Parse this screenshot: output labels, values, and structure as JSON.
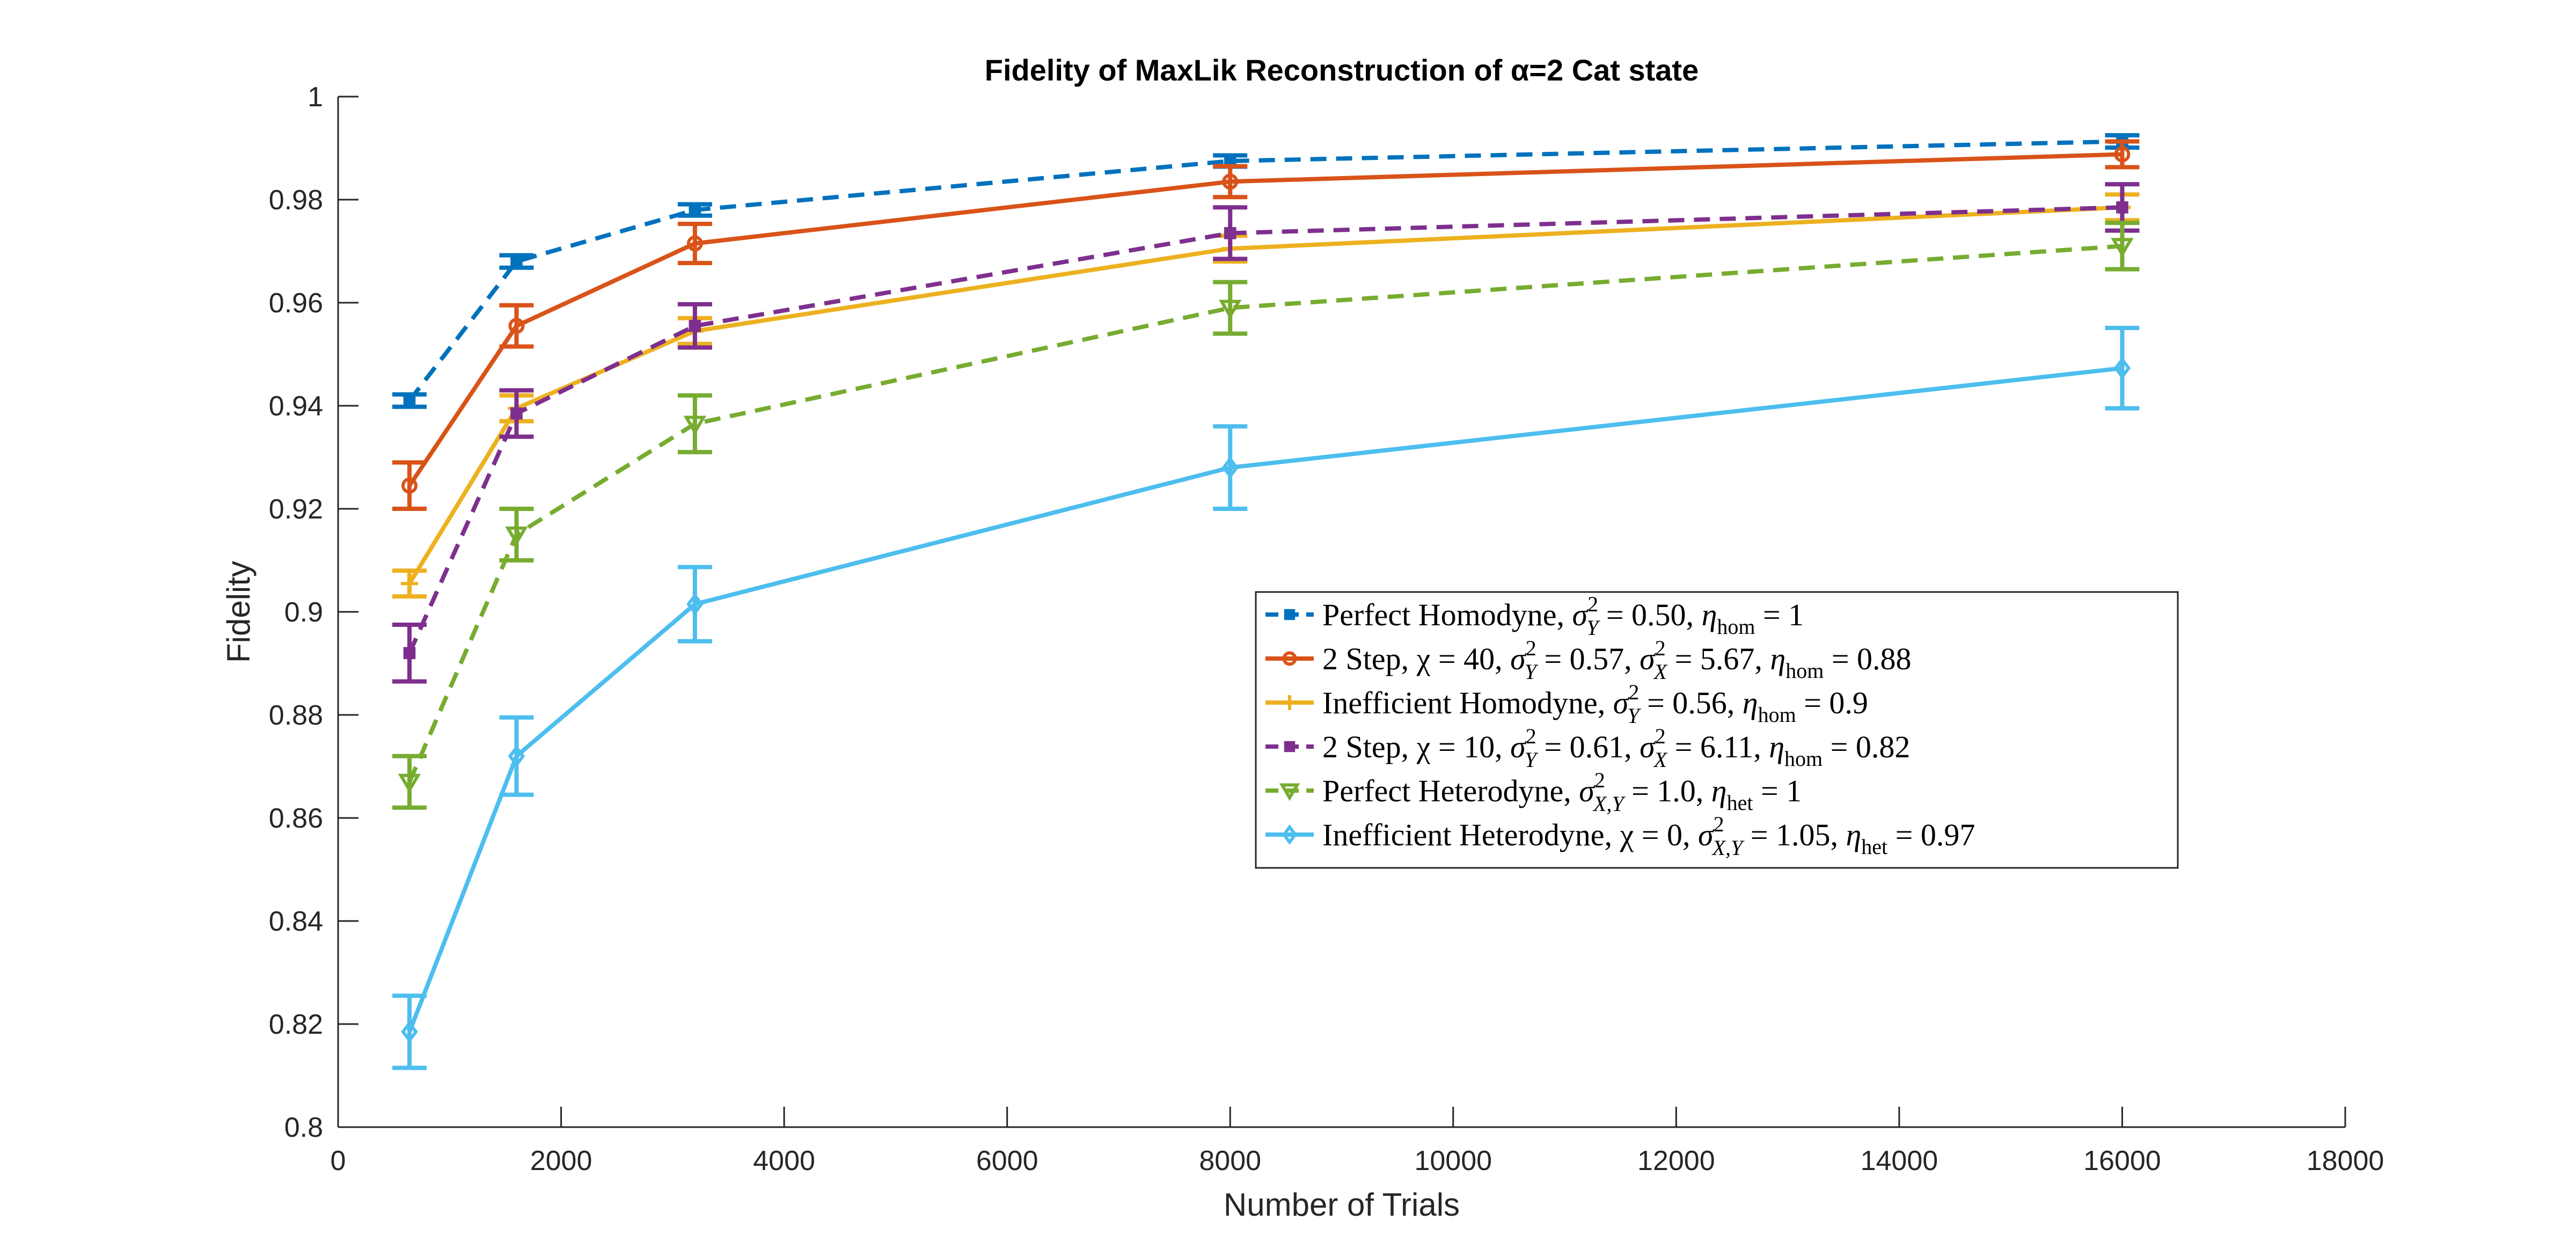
{
  "chart_data": {
    "type": "line",
    "title": "Fidelity of MaxLik Reconstruction of α=2 Cat state",
    "xlabel": "Number of Trials",
    "ylabel": "Fidelity",
    "xlim": [
      0,
      18000
    ],
    "ylim": [
      0.8,
      1.0
    ],
    "xticks": [
      0,
      2000,
      4000,
      6000,
      8000,
      10000,
      12000,
      14000,
      16000,
      18000
    ],
    "xtick_labels": [
      "0",
      "2000",
      "4000",
      "6000",
      "8000",
      "10000",
      "12000",
      "14000",
      "16000",
      "18000"
    ],
    "yticks": [
      0.8,
      0.82,
      0.84,
      0.86,
      0.88,
      0.9,
      0.92,
      0.94,
      0.96,
      0.98,
      1.0
    ],
    "ytick_labels": [
      "0.8",
      "0.82",
      "0.84",
      "0.86",
      "0.88",
      "0.9",
      "0.92",
      "0.94",
      "0.96",
      "0.98",
      "1"
    ],
    "grid": false,
    "legend_position": "center-right",
    "x": [
      640,
      1600,
      3200,
      8000,
      16000
    ],
    "series": [
      {
        "name": "Perfect Homodyne, σ_Y² = 0.50, η_hom = 1",
        "color": "#0072BD",
        "dash": "dashed",
        "marker": "square",
        "values": [
          0.941,
          0.968,
          0.978,
          0.9875,
          0.9913
        ],
        "errors": [
          0.0012,
          0.0012,
          0.0011,
          0.0011,
          0.0012
        ]
      },
      {
        "name": "2 Step, χ = 40, σ_Y² = 0.57, σ_X² = 5.67, η_hom = 0.88",
        "color": "#D95319",
        "dash": "solid",
        "marker": "circle",
        "values": [
          0.9245,
          0.9555,
          0.9715,
          0.9835,
          0.9888
        ],
        "errors": [
          0.0045,
          0.004,
          0.0038,
          0.003,
          0.0025
        ]
      },
      {
        "name": "Inefficient Homodyne, σ_Y² = 0.56, η_hom = 0.9",
        "color": "#EDB120",
        "dash": "solid",
        "marker": "plus",
        "values": [
          0.9055,
          0.9395,
          0.9545,
          0.9705,
          0.9785
        ],
        "errors": [
          0.0025,
          0.0025,
          0.0025,
          0.0025,
          0.0025
        ]
      },
      {
        "name": "2 Step, χ = 10, σ_Y² = 0.61, σ_X² = 6.11, η_hom = 0.82",
        "color": "#7E2F8E",
        "dash": "dashed",
        "marker": "square",
        "values": [
          0.892,
          0.9385,
          0.9555,
          0.9735,
          0.9785
        ],
        "errors": [
          0.0055,
          0.0045,
          0.0042,
          0.005,
          0.0045
        ]
      },
      {
        "name": "Perfect Heterodyne, σ_{X,Y}² = 1.0, η_het = 1",
        "color": "#77AC30",
        "dash": "dashed",
        "marker": "triangle-down",
        "values": [
          0.867,
          0.915,
          0.9365,
          0.959,
          0.971
        ],
        "errors": [
          0.005,
          0.005,
          0.0055,
          0.005,
          0.0045
        ]
      },
      {
        "name": "Inefficient Heterodyne, χ = 0, σ_{X,Y}² = 1.05, η_het = 0.97",
        "color": "#4DBEEE",
        "dash": "solid",
        "marker": "diamond",
        "values": [
          0.8185,
          0.872,
          0.9015,
          0.928,
          0.9473
        ],
        "errors": [
          0.007,
          0.0075,
          0.0072,
          0.008,
          0.0078
        ]
      }
    ]
  },
  "legend": {
    "entries": [
      {
        "prefix": "Perfect Homodyne, ",
        "parts": [
          "σ",
          "2",
          "Y",
          " = 0.50, ",
          "η",
          "hom",
          " = 1"
        ]
      },
      {
        "prefix": "2 Step, ",
        "parts": [
          "χ = 40, ",
          "σ",
          "2",
          "Y",
          " = 0.57, ",
          "σ",
          "2",
          "X",
          " = 5.67, ",
          "η",
          "hom",
          " = 0.88"
        ]
      },
      {
        "prefix": "Inefficient Homodyne, ",
        "parts": [
          "σ",
          "2",
          "Y",
          " = 0.56, ",
          "η",
          "hom",
          " = 0.9"
        ]
      },
      {
        "prefix": "2 Step, ",
        "parts": [
          "χ = 10, ",
          "σ",
          "2",
          "Y",
          " = 0.61, ",
          "σ",
          "2",
          "X",
          " = 6.11, ",
          "η",
          "hom",
          " = 0.82"
        ]
      },
      {
        "prefix": "Perfect Heterodyne, ",
        "parts": [
          "σ",
          "2",
          "X,Y",
          " = 1.0, ",
          "η",
          "het",
          " = 1"
        ]
      },
      {
        "prefix": "Inefficient Heterodyne, ",
        "parts": [
          "χ = 0, ",
          "σ",
          "2",
          "X,Y",
          " = 1.05, ",
          "η",
          "het",
          " = 0.97"
        ]
      }
    ]
  }
}
